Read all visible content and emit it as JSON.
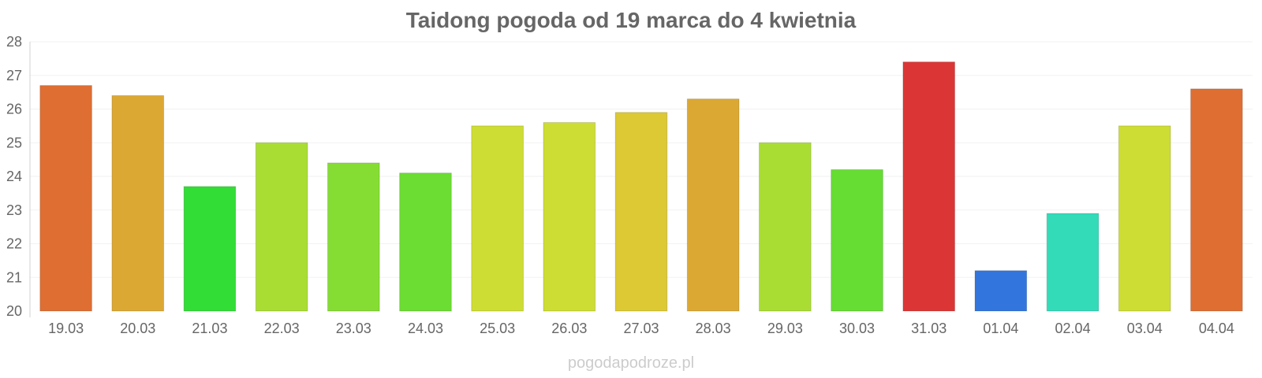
{
  "chart_data": {
    "type": "bar",
    "title": "Taidong pogoda od 19 marca do 4 kwietnia",
    "categories": [
      "19.03",
      "20.03",
      "21.03",
      "22.03",
      "23.03",
      "24.03",
      "25.03",
      "26.03",
      "27.03",
      "28.03",
      "29.03",
      "30.03",
      "31.03",
      "01.04",
      "02.04",
      "03.04",
      "04.04"
    ],
    "values": [
      26.7,
      26.4,
      23.7,
      25.0,
      24.4,
      24.1,
      25.5,
      25.6,
      25.9,
      26.3,
      25.0,
      24.2,
      27.4,
      21.2,
      22.9,
      25.5,
      26.6
    ],
    "colors": [
      "#df6e33",
      "#dca834",
      "#32dd36",
      "#aadd33",
      "#85dd33",
      "#6cdd33",
      "#cedd33",
      "#cedd33",
      "#dcc934",
      "#dca834",
      "#aadd33",
      "#66dd33",
      "#dc3535",
      "#3275dc",
      "#33dbb9",
      "#cedd33",
      "#df6e33"
    ],
    "ylim": [
      20,
      28
    ],
    "yticks": [
      "20",
      "21",
      "22",
      "23",
      "24",
      "25",
      "26",
      "27",
      "28"
    ],
    "grid": true,
    "xlabel": "",
    "ylabel": ""
  },
  "footer": "pogodapodroze.pl"
}
